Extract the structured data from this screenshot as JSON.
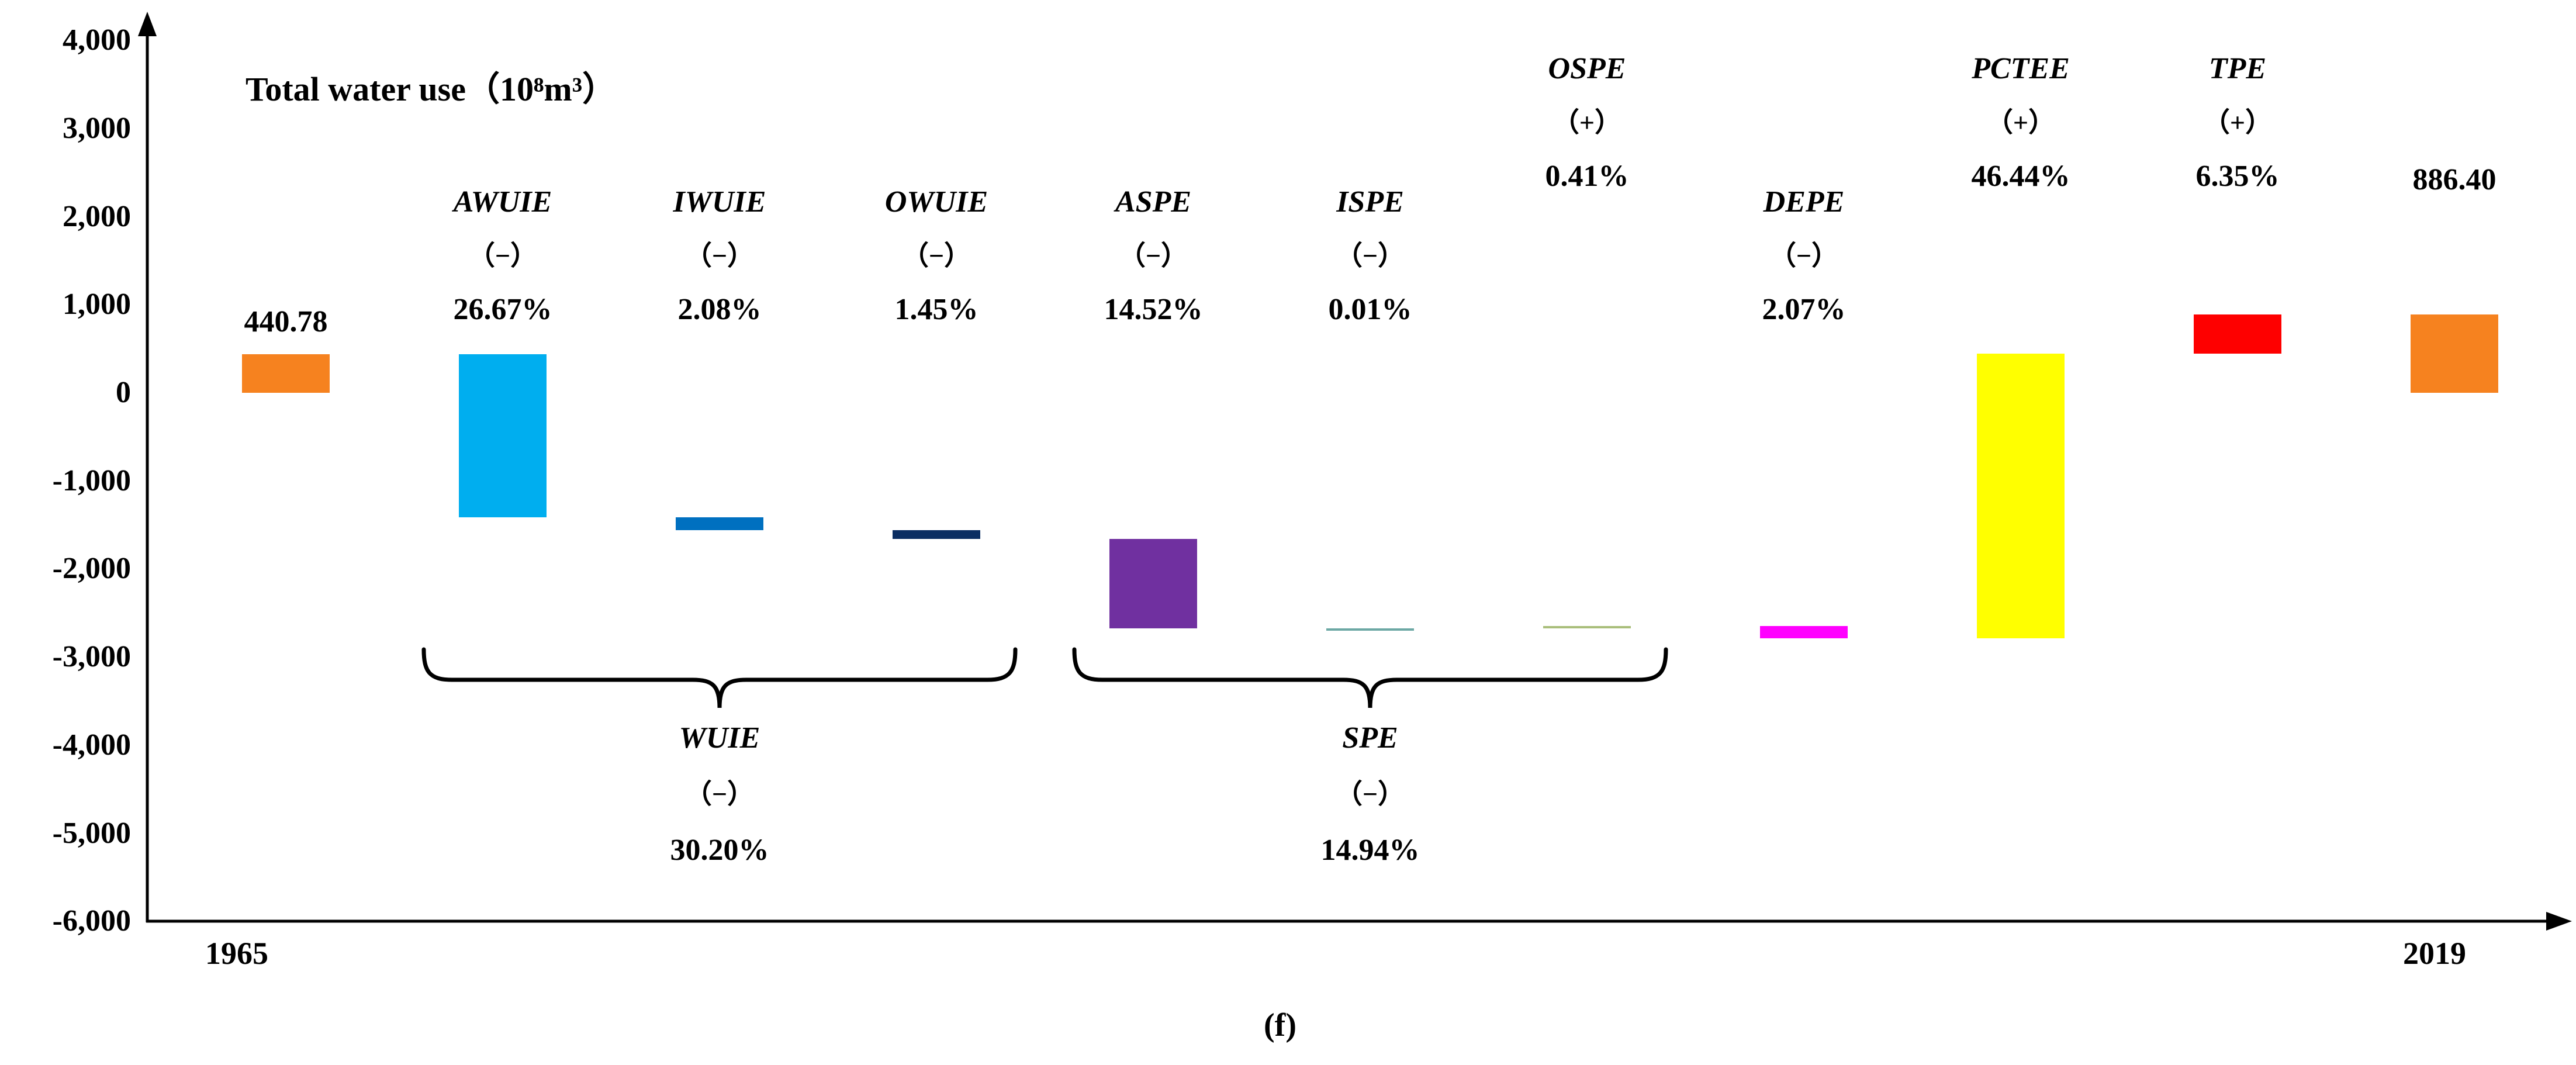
{
  "caption": "(f)",
  "x_axis": {
    "start_label": "1965",
    "end_label": "2019"
  },
  "chart_data": {
    "type": "bar",
    "subtype": "waterfall",
    "title": "Total water use（10⁸m³）",
    "xlabel": "",
    "ylabel": "Total water use (10^8 m^3)",
    "ylim": [
      -6000,
      4000
    ],
    "grid": false,
    "legend": "none",
    "x_start": "1965",
    "x_end": "2019",
    "start_value": 440.78,
    "end_value": 886.4,
    "y_ticks": [
      {
        "label": "4,000",
        "value": 4000
      },
      {
        "label": "3,000",
        "value": 3000
      },
      {
        "label": "2,000",
        "value": 2000
      },
      {
        "label": "1,000",
        "value": 1000
      },
      {
        "label": "0",
        "value": 0
      },
      {
        "label": "-1,000",
        "value": -1000
      },
      {
        "label": "-2,000",
        "value": -2000
      },
      {
        "label": "-3,000",
        "value": -3000
      },
      {
        "label": "-4,000",
        "value": -4000
      },
      {
        "label": "-5,000",
        "value": -5000
      },
      {
        "label": "-6,000",
        "value": -6000
      }
    ],
    "bars": [
      {
        "name": "total-1965",
        "label_lines": [
          "440.78"
        ],
        "row": "value-low",
        "color": "#F6821F",
        "from": 0,
        "to": 440.78,
        "kind": "total"
      },
      {
        "name": "AWUIE",
        "label_lines": [
          "AWUIE",
          "（−）",
          "26.67%"
        ],
        "row": "A",
        "color": "#00AEEF",
        "from": 440.78,
        "to": -1416.2,
        "effect_pct": "-26.67%"
      },
      {
        "name": "IWUIE",
        "label_lines": [
          "IWUIE",
          "（−）",
          "2.08%"
        ],
        "row": "A",
        "color": "#0070C0",
        "from": -1416.2,
        "to": -1561.0,
        "effect_pct": "-2.08%"
      },
      {
        "name": "OWUIE",
        "label_lines": [
          "OWUIE",
          "（−）",
          "1.45%"
        ],
        "row": "A",
        "color": "#0B2E62",
        "from": -1561.0,
        "to": -1662.0,
        "effect_pct": "-1.45%"
      },
      {
        "name": "ASPE",
        "label_lines": [
          "ASPE",
          "（−）",
          "14.52%"
        ],
        "row": "A",
        "color": "#7030A0",
        "from": -1662.0,
        "to": -2673.0,
        "effect_pct": "-14.52%"
      },
      {
        "name": "ISPE",
        "label_lines": [
          "ISPE",
          "（−）",
          "0.01%"
        ],
        "row": "A",
        "color": "#6CA8A4",
        "from": -2673.0,
        "to": -2673.7,
        "effect_pct": "-0.01%"
      },
      {
        "name": "OSPE",
        "label_lines": [
          "OSPE",
          "（+）",
          "0.41%"
        ],
        "row": "B",
        "color": "#A9BE7B",
        "from": -2673.7,
        "to": -2645.1,
        "effect_pct": "+0.41%"
      },
      {
        "name": "DEPE",
        "label_lines": [
          "DEPE",
          "（−）",
          "2.07%"
        ],
        "row": "A",
        "color": "#FF00FF",
        "from": -2645.1,
        "to": -2789.3,
        "effect_pct": "-2.07%"
      },
      {
        "name": "PCTEE",
        "label_lines": [
          "PCTEE",
          "（+）",
          "46.44%"
        ],
        "row": "B",
        "color": "#FFFF00",
        "from": -2789.3,
        "to": 444.3,
        "effect_pct": "+46.44%"
      },
      {
        "name": "TPE",
        "label_lines": [
          "TPE",
          "（+）",
          "6.35%"
        ],
        "row": "B",
        "color": "#FE0000",
        "from": 444.3,
        "to": 886.4,
        "effect_pct": "+6.35%"
      },
      {
        "name": "total-2019",
        "label_lines": [
          "886.40"
        ],
        "row": "value-high",
        "color": "#F6821F",
        "from": 0,
        "to": 886.4,
        "kind": "total"
      }
    ],
    "brackets": [
      {
        "label_lines": [
          "WUIE",
          "（−）",
          "30.20%"
        ],
        "from_bar": 1,
        "to_bar": 3,
        "effect_pct": "-30.20%"
      },
      {
        "label_lines": [
          "SPE",
          "（−）",
          "14.94%"
        ],
        "from_bar": 4,
        "to_bar": 6,
        "effect_pct": "-14.94%"
      }
    ]
  }
}
